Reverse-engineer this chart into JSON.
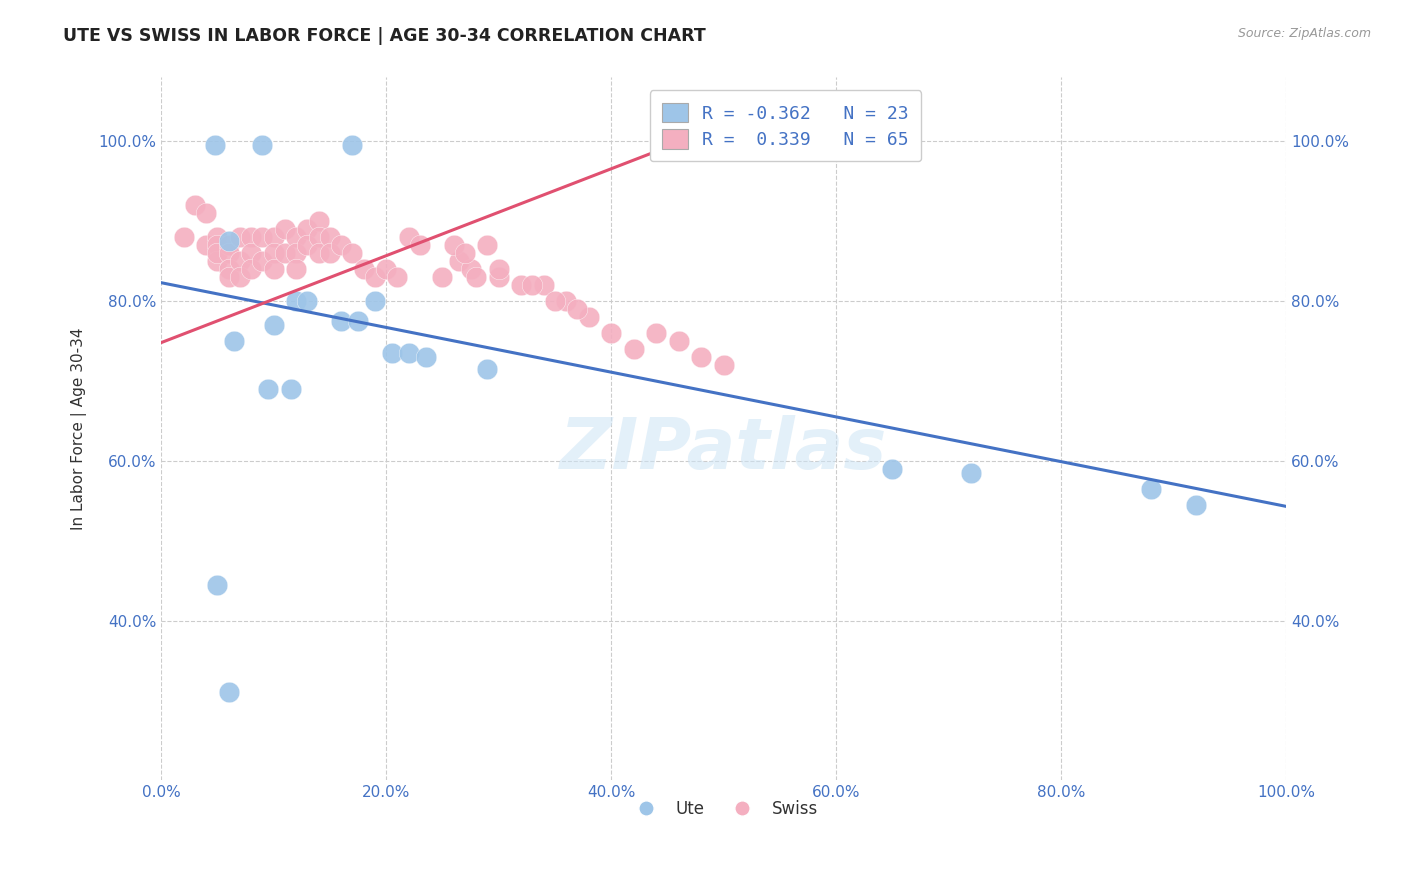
{
  "title": "UTE VS SWISS IN LABOR FORCE | AGE 30-34 CORRELATION CHART",
  "ylabel": "In Labor Force | Age 30-34",
  "source_text": "Source: ZipAtlas.com",
  "watermark": "ZIPatlas",
  "xlim": [
    0.0,
    1.0
  ],
  "ylim": [
    0.2,
    1.08
  ],
  "xtick_vals": [
    0.0,
    0.2,
    0.4,
    0.6,
    0.8,
    1.0
  ],
  "ytick_vals": [
    0.4,
    0.6,
    0.8,
    1.0
  ],
  "blue_R": "-0.362",
  "blue_N": "23",
  "pink_R": "0.339",
  "pink_N": "65",
  "blue_color": "#9ec5e8",
  "pink_color": "#f4afc0",
  "blue_line_color": "#4472c4",
  "pink_line_color": "#e05070",
  "grid_color": "#cccccc",
  "blue_points_x": [
    0.048,
    0.17,
    0.06,
    0.09,
    0.12,
    0.13,
    0.16,
    0.175,
    0.19,
    0.205,
    0.22,
    0.235,
    0.05,
    0.06,
    0.29,
    0.1,
    0.065,
    0.095,
    0.115,
    0.65,
    0.72,
    0.88,
    0.92
  ],
  "blue_points_y": [
    0.995,
    0.995,
    0.875,
    0.995,
    0.8,
    0.8,
    0.775,
    0.775,
    0.8,
    0.735,
    0.735,
    0.73,
    0.445,
    0.31,
    0.715,
    0.77,
    0.75,
    0.69,
    0.69,
    0.59,
    0.585,
    0.565,
    0.545
  ],
  "pink_points_x": [
    0.02,
    0.03,
    0.04,
    0.04,
    0.05,
    0.05,
    0.05,
    0.05,
    0.06,
    0.06,
    0.06,
    0.06,
    0.07,
    0.07,
    0.07,
    0.08,
    0.08,
    0.08,
    0.09,
    0.09,
    0.1,
    0.1,
    0.1,
    0.11,
    0.11,
    0.12,
    0.12,
    0.12,
    0.13,
    0.13,
    0.14,
    0.14,
    0.14,
    0.15,
    0.15,
    0.16,
    0.17,
    0.18,
    0.19,
    0.2,
    0.21,
    0.22,
    0.23,
    0.25,
    0.265,
    0.275,
    0.29,
    0.3,
    0.32,
    0.34,
    0.36,
    0.38,
    0.4,
    0.42,
    0.44,
    0.46,
    0.48,
    0.26,
    0.27,
    0.28,
    0.3,
    0.33,
    0.35,
    0.37,
    0.5
  ],
  "pink_points_y": [
    0.88,
    0.92,
    0.91,
    0.87,
    0.88,
    0.87,
    0.85,
    0.86,
    0.87,
    0.86,
    0.84,
    0.83,
    0.88,
    0.85,
    0.83,
    0.88,
    0.86,
    0.84,
    0.88,
    0.85,
    0.88,
    0.86,
    0.84,
    0.89,
    0.86,
    0.88,
    0.86,
    0.84,
    0.89,
    0.87,
    0.9,
    0.88,
    0.86,
    0.88,
    0.86,
    0.87,
    0.86,
    0.84,
    0.83,
    0.84,
    0.83,
    0.88,
    0.87,
    0.83,
    0.85,
    0.84,
    0.87,
    0.83,
    0.82,
    0.82,
    0.8,
    0.78,
    0.76,
    0.74,
    0.76,
    0.75,
    0.73,
    0.87,
    0.86,
    0.83,
    0.84,
    0.82,
    0.8,
    0.79,
    0.72
  ],
  "blue_line_x": [
    0.0,
    1.0
  ],
  "blue_line_y": [
    0.823,
    0.543
  ],
  "pink_line_x": [
    0.0,
    0.5
  ],
  "pink_line_y": [
    0.748,
    1.02
  ]
}
